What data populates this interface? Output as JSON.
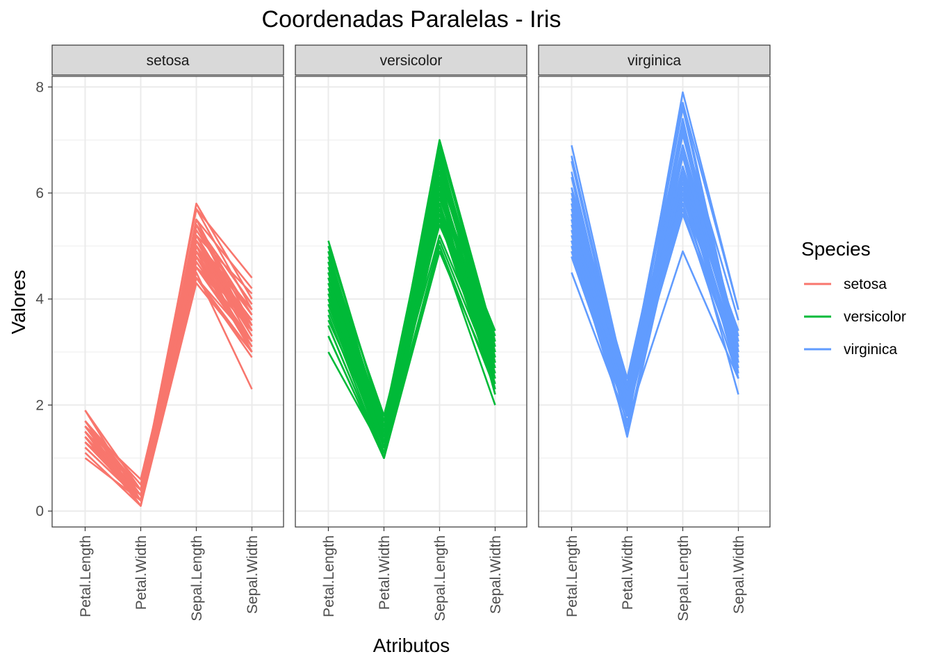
{
  "chart_data": {
    "type": "line",
    "subtype": "parallel-coordinates-faceted",
    "title": "Coordenadas Paralelas - Iris",
    "xlabel": "Atributos",
    "ylabel": "Valores",
    "attributes": [
      "Petal.Length",
      "Petal.Width",
      "Sepal.Length",
      "Sepal.Width"
    ],
    "ylim": [
      -0.3,
      8.2
    ],
    "y_ticks": [
      "0",
      "2",
      "4",
      "6",
      "8"
    ],
    "grid": true,
    "facets": [
      "setosa",
      "versicolor",
      "virginica"
    ],
    "legend": {
      "title": "Species",
      "position": "right",
      "entries": [
        "setosa",
        "versicolor",
        "virginica"
      ]
    },
    "colors": {
      "setosa": "#F8766D",
      "versicolor": "#00BA38",
      "virginica": "#619CFF"
    },
    "series": [
      {
        "name": "setosa",
        "lines": [
          [
            1.4,
            0.2,
            5.1,
            3.5
          ],
          [
            1.4,
            0.2,
            4.9,
            3.0
          ],
          [
            1.3,
            0.2,
            4.7,
            3.2
          ],
          [
            1.5,
            0.2,
            4.6,
            3.1
          ],
          [
            1.4,
            0.2,
            5.0,
            3.6
          ],
          [
            1.7,
            0.4,
            5.4,
            3.9
          ],
          [
            1.4,
            0.3,
            4.6,
            3.4
          ],
          [
            1.5,
            0.2,
            5.0,
            3.4
          ],
          [
            1.4,
            0.2,
            4.4,
            2.9
          ],
          [
            1.5,
            0.1,
            4.9,
            3.1
          ],
          [
            1.5,
            0.2,
            5.4,
            3.7
          ],
          [
            1.6,
            0.2,
            4.8,
            3.4
          ],
          [
            1.4,
            0.1,
            4.8,
            3.0
          ],
          [
            1.1,
            0.1,
            4.3,
            3.0
          ],
          [
            1.2,
            0.2,
            5.8,
            4.0
          ],
          [
            1.5,
            0.4,
            5.7,
            4.4
          ],
          [
            1.3,
            0.4,
            5.4,
            3.9
          ],
          [
            1.4,
            0.3,
            5.1,
            3.5
          ],
          [
            1.7,
            0.3,
            5.7,
            3.8
          ],
          [
            1.5,
            0.3,
            5.1,
            3.8
          ],
          [
            1.7,
            0.2,
            5.4,
            3.4
          ],
          [
            1.5,
            0.4,
            5.1,
            3.7
          ],
          [
            1.0,
            0.2,
            4.6,
            3.6
          ],
          [
            1.7,
            0.5,
            5.1,
            3.3
          ],
          [
            1.9,
            0.2,
            4.8,
            3.4
          ],
          [
            1.6,
            0.2,
            5.0,
            3.0
          ],
          [
            1.6,
            0.4,
            5.0,
            3.4
          ],
          [
            1.5,
            0.2,
            5.2,
            3.5
          ],
          [
            1.4,
            0.2,
            5.2,
            3.4
          ],
          [
            1.6,
            0.2,
            4.7,
            3.2
          ],
          [
            1.6,
            0.2,
            4.8,
            3.1
          ],
          [
            1.5,
            0.4,
            5.4,
            3.4
          ],
          [
            1.5,
            0.1,
            5.2,
            4.1
          ],
          [
            1.4,
            0.2,
            5.5,
            4.2
          ],
          [
            1.5,
            0.2,
            4.9,
            3.1
          ],
          [
            1.2,
            0.2,
            5.0,
            3.2
          ],
          [
            1.3,
            0.2,
            5.5,
            3.5
          ],
          [
            1.4,
            0.1,
            4.9,
            3.6
          ],
          [
            1.3,
            0.2,
            4.4,
            3.0
          ],
          [
            1.5,
            0.2,
            5.1,
            3.4
          ],
          [
            1.3,
            0.3,
            5.0,
            3.5
          ],
          [
            1.3,
            0.3,
            4.5,
            2.3
          ],
          [
            1.3,
            0.2,
            4.4,
            3.2
          ],
          [
            1.6,
            0.6,
            5.0,
            3.5
          ],
          [
            1.9,
            0.4,
            5.1,
            3.8
          ],
          [
            1.4,
            0.3,
            4.8,
            3.0
          ],
          [
            1.6,
            0.2,
            5.1,
            3.8
          ],
          [
            1.4,
            0.2,
            4.6,
            3.2
          ],
          [
            1.5,
            0.2,
            5.3,
            3.7
          ],
          [
            1.4,
            0.2,
            5.0,
            3.3
          ]
        ]
      },
      {
        "name": "versicolor",
        "lines": [
          [
            4.7,
            1.4,
            7.0,
            3.2
          ],
          [
            4.5,
            1.5,
            6.4,
            3.2
          ],
          [
            4.9,
            1.5,
            6.9,
            3.1
          ],
          [
            4.0,
            1.3,
            5.5,
            2.3
          ],
          [
            4.6,
            1.5,
            6.5,
            2.8
          ],
          [
            4.5,
            1.3,
            5.7,
            2.8
          ],
          [
            4.7,
            1.6,
            6.3,
            3.3
          ],
          [
            3.3,
            1.0,
            4.9,
            2.4
          ],
          [
            4.6,
            1.3,
            6.6,
            2.9
          ],
          [
            3.9,
            1.4,
            5.2,
            2.7
          ],
          [
            3.5,
            1.0,
            5.0,
            2.0
          ],
          [
            4.2,
            1.5,
            5.9,
            3.0
          ],
          [
            4.0,
            1.0,
            6.0,
            2.2
          ],
          [
            4.7,
            1.4,
            6.1,
            2.9
          ],
          [
            3.6,
            1.3,
            5.6,
            2.9
          ],
          [
            4.4,
            1.4,
            6.7,
            3.1
          ],
          [
            4.5,
            1.5,
            5.6,
            3.0
          ],
          [
            4.1,
            1.0,
            5.8,
            2.7
          ],
          [
            4.5,
            1.5,
            6.2,
            2.2
          ],
          [
            3.9,
            1.1,
            5.6,
            2.5
          ],
          [
            4.8,
            1.8,
            5.9,
            3.2
          ],
          [
            4.0,
            1.3,
            6.1,
            2.8
          ],
          [
            4.9,
            1.5,
            6.3,
            2.5
          ],
          [
            4.7,
            1.2,
            6.1,
            2.8
          ],
          [
            4.3,
            1.3,
            6.4,
            2.9
          ],
          [
            4.4,
            1.4,
            6.6,
            3.0
          ],
          [
            4.8,
            1.4,
            6.8,
            2.8
          ],
          [
            5.0,
            1.7,
            6.7,
            3.0
          ],
          [
            4.5,
            1.5,
            6.0,
            2.9
          ],
          [
            3.5,
            1.0,
            5.7,
            2.6
          ],
          [
            3.8,
            1.1,
            5.5,
            2.4
          ],
          [
            3.7,
            1.0,
            5.5,
            2.4
          ],
          [
            3.9,
            1.2,
            5.8,
            2.7
          ],
          [
            5.1,
            1.6,
            6.0,
            2.7
          ],
          [
            4.5,
            1.5,
            5.4,
            3.0
          ],
          [
            4.5,
            1.6,
            6.0,
            3.4
          ],
          [
            4.7,
            1.5,
            6.7,
            3.1
          ],
          [
            4.4,
            1.3,
            6.3,
            2.3
          ],
          [
            4.1,
            1.3,
            5.6,
            3.0
          ],
          [
            4.0,
            1.3,
            5.5,
            2.5
          ],
          [
            4.4,
            1.2,
            5.5,
            2.6
          ],
          [
            4.6,
            1.4,
            6.1,
            3.0
          ],
          [
            4.0,
            1.2,
            5.8,
            2.6
          ],
          [
            3.3,
            1.0,
            5.0,
            2.3
          ],
          [
            4.2,
            1.3,
            5.6,
            2.7
          ],
          [
            4.2,
            1.2,
            5.7,
            3.0
          ],
          [
            4.2,
            1.3,
            5.7,
            2.9
          ],
          [
            4.3,
            1.3,
            6.2,
            2.9
          ],
          [
            3.0,
            1.1,
            5.1,
            2.5
          ],
          [
            4.1,
            1.3,
            5.7,
            2.8
          ]
        ]
      },
      {
        "name": "virginica",
        "lines": [
          [
            6.0,
            2.5,
            6.3,
            3.3
          ],
          [
            5.1,
            1.9,
            5.8,
            2.7
          ],
          [
            5.9,
            2.1,
            7.1,
            3.0
          ],
          [
            5.6,
            1.8,
            6.3,
            2.9
          ],
          [
            5.8,
            2.2,
            6.5,
            3.0
          ],
          [
            6.6,
            2.1,
            7.6,
            3.0
          ],
          [
            4.5,
            1.7,
            4.9,
            2.5
          ],
          [
            6.3,
            1.8,
            7.3,
            2.9
          ],
          [
            5.8,
            1.8,
            6.7,
            2.5
          ],
          [
            6.1,
            2.5,
            7.2,
            3.6
          ],
          [
            5.1,
            2.0,
            6.5,
            3.2
          ],
          [
            5.3,
            1.9,
            6.4,
            2.7
          ],
          [
            5.5,
            2.1,
            6.8,
            3.0
          ],
          [
            5.0,
            2.0,
            5.7,
            2.5
          ],
          [
            5.1,
            2.4,
            5.8,
            2.8
          ],
          [
            5.3,
            2.3,
            6.4,
            3.2
          ],
          [
            5.5,
            1.8,
            6.5,
            3.0
          ],
          [
            6.7,
            2.2,
            7.7,
            3.8
          ],
          [
            6.9,
            2.3,
            7.7,
            2.6
          ],
          [
            5.0,
            1.5,
            6.0,
            2.2
          ],
          [
            5.7,
            2.3,
            6.9,
            3.2
          ],
          [
            4.9,
            2.0,
            5.6,
            2.8
          ],
          [
            6.7,
            2.0,
            7.7,
            2.8
          ],
          [
            4.9,
            1.8,
            6.3,
            2.7
          ],
          [
            5.7,
            2.1,
            6.7,
            3.3
          ],
          [
            6.0,
            1.8,
            7.2,
            3.2
          ],
          [
            4.8,
            1.8,
            6.2,
            2.8
          ],
          [
            4.9,
            1.8,
            6.1,
            3.0
          ],
          [
            5.6,
            2.1,
            6.4,
            2.8
          ],
          [
            5.8,
            1.6,
            7.2,
            3.0
          ],
          [
            6.1,
            1.9,
            7.4,
            2.8
          ],
          [
            6.4,
            2.0,
            7.9,
            3.8
          ],
          [
            5.6,
            2.2,
            6.4,
            2.8
          ],
          [
            5.1,
            1.5,
            6.3,
            2.8
          ],
          [
            5.6,
            1.4,
            6.1,
            2.6
          ],
          [
            6.1,
            2.3,
            7.7,
            3.0
          ],
          [
            5.6,
            2.4,
            6.3,
            3.4
          ],
          [
            5.5,
            1.8,
            6.4,
            3.1
          ],
          [
            4.8,
            1.8,
            6.0,
            3.0
          ],
          [
            5.4,
            2.1,
            6.9,
            3.1
          ],
          [
            5.6,
            2.4,
            6.7,
            3.1
          ],
          [
            5.1,
            2.3,
            6.9,
            3.1
          ],
          [
            5.1,
            1.9,
            5.8,
            2.7
          ],
          [
            5.9,
            2.3,
            6.8,
            3.2
          ],
          [
            5.7,
            2.5,
            6.7,
            3.3
          ],
          [
            5.2,
            2.3,
            6.7,
            3.0
          ],
          [
            5.0,
            1.9,
            6.3,
            2.5
          ],
          [
            5.2,
            2.0,
            6.5,
            3.0
          ],
          [
            5.4,
            2.3,
            6.2,
            3.4
          ],
          [
            5.1,
            1.8,
            5.9,
            3.0
          ]
        ]
      }
    ]
  }
}
